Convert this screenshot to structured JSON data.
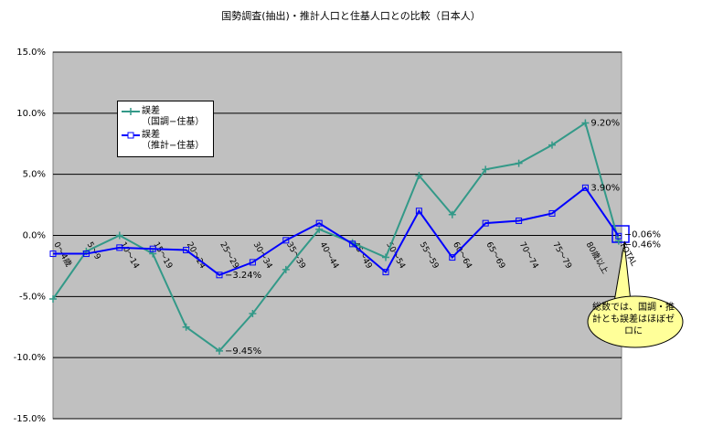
{
  "chart_data": {
    "type": "line",
    "title": "国勢調査(抽出)・推計人口と住基人口との比較（日本人）",
    "categories": [
      "0～4歳",
      "5～9",
      "10～14",
      "15～19",
      "20～24",
      "25～29",
      "30～34",
      "35～39",
      "40～44",
      "45～49",
      "50～54",
      "55～59",
      "60～64",
      "65～69",
      "70～74",
      "75～79",
      "80歳以上",
      "TOTAL"
    ],
    "series": [
      {
        "name": "誤差\n（国調−住基）",
        "color": "#339988",
        "marker": "plus",
        "values": [
          -5.2,
          -1.3,
          0.0,
          -1.5,
          -7.5,
          -9.45,
          -6.4,
          -2.8,
          0.5,
          -0.6,
          -1.8,
          4.9,
          1.7,
          5.4,
          5.9,
          7.4,
          9.2,
          -0.46
        ],
        "value_labels": [
          null,
          null,
          null,
          null,
          null,
          "−9.45%",
          null,
          null,
          null,
          null,
          null,
          null,
          null,
          null,
          null,
          null,
          "9.20%",
          "−0.46%"
        ]
      },
      {
        "name": "誤差\n（推計−住基）",
        "color": "#0000ff",
        "marker": "square",
        "values": [
          -1.5,
          -1.5,
          -1.0,
          -1.1,
          -1.2,
          -3.24,
          -2.2,
          -0.4,
          1.0,
          -0.7,
          -3.0,
          2.0,
          -1.8,
          1.0,
          1.2,
          1.8,
          3.9,
          -0.06
        ],
        "value_labels": [
          null,
          null,
          null,
          null,
          null,
          "−3.24%",
          null,
          null,
          null,
          null,
          null,
          null,
          null,
          null,
          null,
          null,
          "3.90%",
          "−0.06%"
        ]
      }
    ],
    "ylim": [
      -15,
      15
    ],
    "yticks": [
      {
        "value": -15,
        "label": "-15.0%"
      },
      {
        "value": -10,
        "label": "-10.0%"
      },
      {
        "value": -5,
        "label": "-5.0%"
      },
      {
        "value": 0,
        "label": "0.0%"
      },
      {
        "value": 5,
        "label": "5.0%"
      },
      {
        "value": 10,
        "label": "10.0%"
      },
      {
        "value": 15,
        "label": "15.0%"
      }
    ],
    "grid": true,
    "plot_background": "#c0c0c0",
    "annotation": "総数では、国調・推計とも誤差はほぼゼロに"
  }
}
